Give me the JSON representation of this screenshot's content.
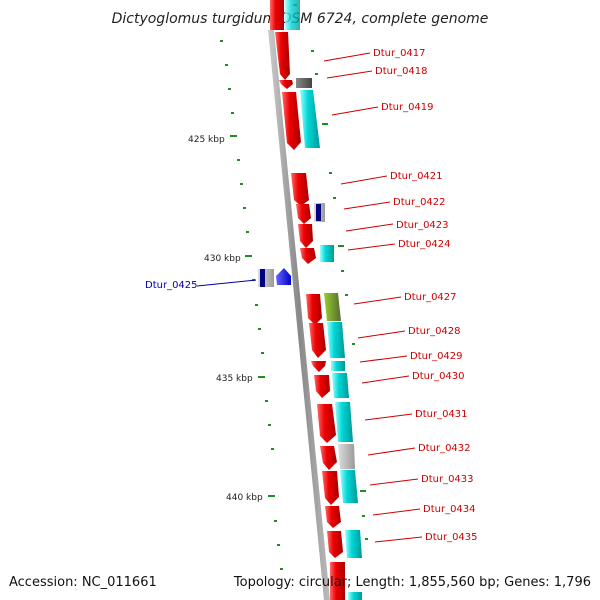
{
  "title": "Dictyoglomus turgidum DSM 6724, complete genome",
  "footer": {
    "accession": "Accession: NC_011661",
    "topology": "Topology: circular; Length: 1,855,560 bp; Genes: 1,796"
  },
  "scale_labels": [
    "425 kbp",
    "430 kbp",
    "435 kbp",
    "440 kbp"
  ],
  "genes": [
    {
      "label": "Dtur_0417",
      "color": "#cc0000"
    },
    {
      "label": "Dtur_0418",
      "color": "#cc0000"
    },
    {
      "label": "Dtur_0419",
      "color": "#cc0000"
    },
    {
      "label": "Dtur_0421",
      "color": "#cc0000"
    },
    {
      "label": "Dtur_0422",
      "color": "#cc0000"
    },
    {
      "label": "Dtur_0423",
      "color": "#cc0000"
    },
    {
      "label": "Dtur_0424",
      "color": "#cc0000"
    },
    {
      "label": "Dtur_0425",
      "color": "#0000aa"
    },
    {
      "label": "Dtur_0427",
      "color": "#cc0000"
    },
    {
      "label": "Dtur_0428",
      "color": "#cc0000"
    },
    {
      "label": "Dtur_0429",
      "color": "#cc0000"
    },
    {
      "label": "Dtur_0430",
      "color": "#cc0000"
    },
    {
      "label": "Dtur_0431",
      "color": "#cc0000"
    },
    {
      "label": "Dtur_0432",
      "color": "#cc0000"
    },
    {
      "label": "Dtur_0433",
      "color": "#cc0000"
    },
    {
      "label": "Dtur_0434",
      "color": "#cc0000"
    },
    {
      "label": "Dtur_0435",
      "color": "#cc0000"
    }
  ],
  "colors": {
    "forward_gene": "#e8000b",
    "cog_cyan": "#00cccc",
    "cog_grey": "#aaaaaa",
    "cog_olive": "#6b8e23",
    "reverse_gene": "#1a1aff",
    "backbone": "#9a9a9a",
    "tick": "#228b22"
  }
}
